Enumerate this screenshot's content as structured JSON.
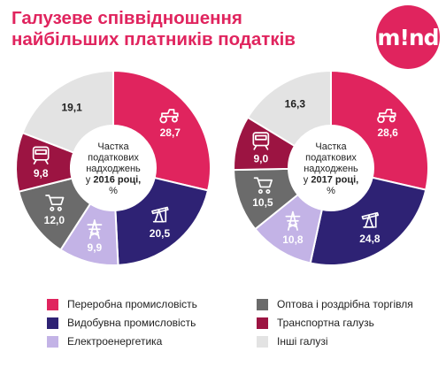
{
  "title": "Галузеве співвідношення найбільших платників податків",
  "logo": "m!nd",
  "colors": {
    "processing": "#e0245e",
    "extraction": "#2e2274",
    "energy": "#c3b3e6",
    "trade": "#6b6b6b",
    "transport": "#9c1442",
    "other": "#e3e3e3"
  },
  "chart_data": [
    {
      "type": "pie",
      "center_label": [
        "Частка",
        "податкових",
        "надходжень",
        "у 2016 році,",
        "%"
      ],
      "slices": [
        {
          "category": "Переробна промисловість",
          "value": 28.7,
          "label": "28,7",
          "color_key": "processing",
          "icon": "tractor-icon"
        },
        {
          "category": "Видобувна промисловість",
          "value": 20.5,
          "label": "20,5",
          "color_key": "extraction",
          "icon": "oil-pump-icon"
        },
        {
          "category": "Електроенергетика",
          "value": 9.9,
          "label": "9,9",
          "color_key": "energy",
          "icon": "power-tower-icon"
        },
        {
          "category": "Оптова і роздрібна торгівля",
          "value": 12.0,
          "label": "12,0",
          "color_key": "trade",
          "icon": "shopping-cart-icon"
        },
        {
          "category": "Транспортна галузь",
          "value": 9.8,
          "label": "9,8",
          "color_key": "transport",
          "icon": "train-icon"
        },
        {
          "category": "Інші галузі",
          "value": 19.1,
          "label": "19,1",
          "color_key": "other",
          "icon": ""
        }
      ]
    },
    {
      "type": "pie",
      "center_label": [
        "Частка",
        "податкових",
        "надходжень",
        "у 2017 році,",
        "%"
      ],
      "slices": [
        {
          "category": "Переробна промисловість",
          "value": 28.6,
          "label": "28,6",
          "color_key": "processing",
          "icon": "tractor-icon"
        },
        {
          "category": "Видобувна промисловість",
          "value": 24.8,
          "label": "24,8",
          "color_key": "extraction",
          "icon": "oil-pump-icon"
        },
        {
          "category": "Електроенергетика",
          "value": 10.8,
          "label": "10,8",
          "color_key": "energy",
          "icon": "power-tower-icon"
        },
        {
          "category": "Оптова і роздрібна торгівля",
          "value": 10.5,
          "label": "10,5",
          "color_key": "trade",
          "icon": "shopping-cart-icon"
        },
        {
          "category": "Транспортна галузь",
          "value": 9.0,
          "label": "9,0",
          "color_key": "transport",
          "icon": "train-icon"
        },
        {
          "category": "Інші галузі",
          "value": 16.3,
          "label": "16,3",
          "color_key": "other",
          "icon": ""
        }
      ]
    }
  ],
  "legend": [
    {
      "label": "Переробна промисловість",
      "color_key": "processing"
    },
    {
      "label": "Видобувна промисловість",
      "color_key": "extraction"
    },
    {
      "label": "Електроенергетика",
      "color_key": "energy"
    },
    {
      "label": "Оптова і роздрібна торгівля",
      "color_key": "trade"
    },
    {
      "label": "Транспортна галузь",
      "color_key": "transport"
    },
    {
      "label": "Інші галузі",
      "color_key": "other"
    }
  ]
}
